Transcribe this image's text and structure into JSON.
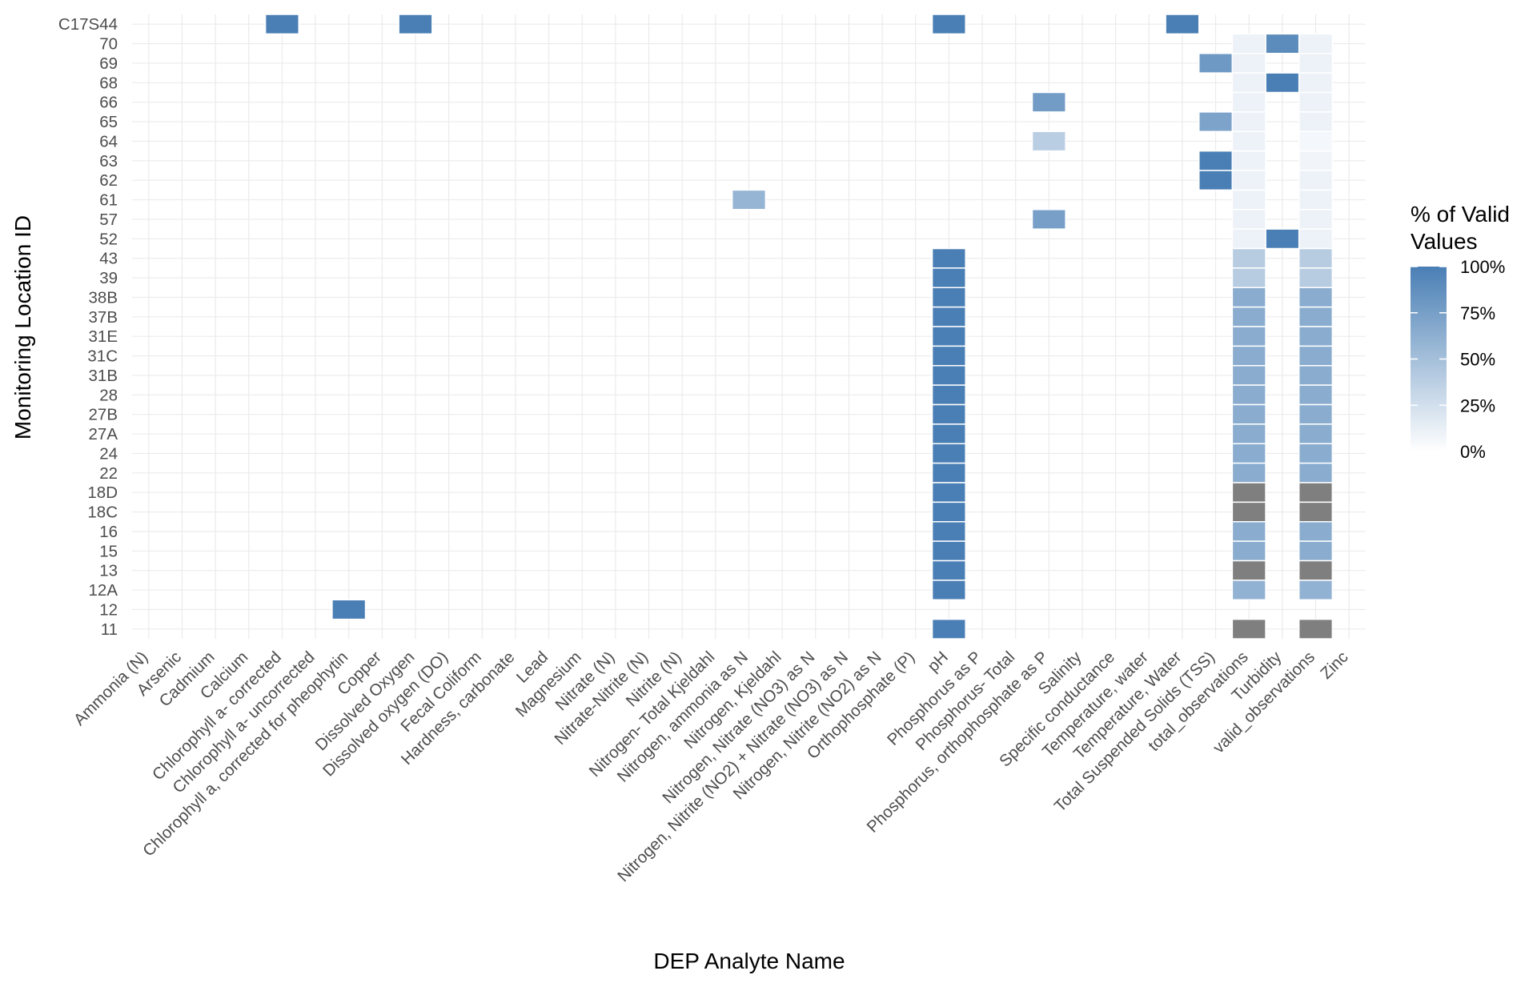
{
  "chart_data": {
    "type": "heatmap",
    "xlabel": "DEP Analyte Name",
    "ylabel": "Monitoring Location ID",
    "x_categories": [
      "Ammonia (N)",
      "Arsenic",
      "Cadmium",
      "Calcium",
      "Chlorophyll a- corrected",
      "Chlorophyll a- uncorrected",
      "Chlorophyll a, corrected for pheophytin",
      "Copper",
      "Dissolved Oxygen",
      "Dissolved oxygen (DO)",
      "Fecal Coliform",
      "Hardness, carbonate",
      "Lead",
      "Magnesium",
      "Nitrate (N)",
      "Nitrate-Nitrite (N)",
      "Nitrite (N)",
      "Nitrogen- Total Kjeldahl",
      "Nitrogen, ammonia as N",
      "Nitrogen, Kjeldahl",
      "Nitrogen, Nitrate (NO3) as N",
      "Nitrogen, Nitrite (NO2) + Nitrate (NO3) as N",
      "Nitrogen, Nitrite (NO2) as N",
      "Orthophosphate (P)",
      "pH",
      "Phosphorus as P",
      "Phosphorus- Total",
      "Phosphorus, orthophosphate as P",
      "Salinity",
      "Specific conductance",
      "Temperature, water",
      "Temperature, Water",
      "Total Suspended Solids (TSS)",
      "total_observations",
      "Turbidity",
      "valid_observations",
      "Zinc"
    ],
    "y_categories": [
      "C17S44",
      "70",
      "69",
      "68",
      "66",
      "65",
      "64",
      "63",
      "62",
      "61",
      "57",
      "52",
      "43",
      "39",
      "38B",
      "37B",
      "31E",
      "31C",
      "31B",
      "28",
      "27B",
      "27A",
      "24",
      "22",
      "18D",
      "18C",
      "16",
      "15",
      "13",
      "12A",
      "12",
      "11"
    ],
    "cells": [
      {
        "x": "Chlorophyll a- corrected",
        "y": "C17S44",
        "value": 100
      },
      {
        "x": "Dissolved Oxygen",
        "y": "C17S44",
        "value": 100
      },
      {
        "x": "pH",
        "y": "C17S44",
        "value": 100
      },
      {
        "x": "Temperature, Water",
        "y": "C17S44",
        "value": 100
      },
      {
        "x": "Turbidity",
        "y": "70",
        "value": 90
      },
      {
        "x": "Total Suspended Solids (TSS)",
        "y": "69",
        "value": 80
      },
      {
        "x": "Turbidity",
        "y": "68",
        "value": 100
      },
      {
        "x": "Phosphorus, orthophosphate as P",
        "y": "66",
        "value": 78
      },
      {
        "x": "Total Suspended Solids (TSS)",
        "y": "65",
        "value": 72
      },
      {
        "x": "Phosphorus, orthophosphate as P",
        "y": "64",
        "value": 38
      },
      {
        "x": "Total Suspended Solids (TSS)",
        "y": "63",
        "value": 100
      },
      {
        "x": "Total Suspended Solids (TSS)",
        "y": "62",
        "value": 100
      },
      {
        "x": "Nitrogen, ammonia as N",
        "y": "61",
        "value": 58
      },
      {
        "x": "Phosphorus, orthophosphate as P",
        "y": "57",
        "value": 75
      },
      {
        "x": "Turbidity",
        "y": "52",
        "value": 100
      },
      {
        "x": "total_observations",
        "y": "70",
        "value": 10
      },
      {
        "x": "total_observations",
        "y": "69",
        "value": 10
      },
      {
        "x": "total_observations",
        "y": "68",
        "value": 10
      },
      {
        "x": "total_observations",
        "y": "66",
        "value": 10
      },
      {
        "x": "total_observations",
        "y": "65",
        "value": 10
      },
      {
        "x": "total_observations",
        "y": "64",
        "value": 10
      },
      {
        "x": "total_observations",
        "y": "63",
        "value": 10
      },
      {
        "x": "total_observations",
        "y": "62",
        "value": 10
      },
      {
        "x": "total_observations",
        "y": "61",
        "value": 10
      },
      {
        "x": "total_observations",
        "y": "57",
        "value": 10
      },
      {
        "x": "total_observations",
        "y": "52",
        "value": 10
      },
      {
        "x": "total_observations",
        "y": "43",
        "value": 40
      },
      {
        "x": "total_observations",
        "y": "39",
        "value": 40
      },
      {
        "x": "total_observations",
        "y": "38B",
        "value": 65
      },
      {
        "x": "total_observations",
        "y": "37B",
        "value": 65
      },
      {
        "x": "total_observations",
        "y": "31E",
        "value": 65
      },
      {
        "x": "total_observations",
        "y": "31C",
        "value": 65
      },
      {
        "x": "total_observations",
        "y": "31B",
        "value": 65
      },
      {
        "x": "total_observations",
        "y": "28",
        "value": 65
      },
      {
        "x": "total_observations",
        "y": "27B",
        "value": 65
      },
      {
        "x": "total_observations",
        "y": "27A",
        "value": 65
      },
      {
        "x": "total_observations",
        "y": "24",
        "value": 65
      },
      {
        "x": "total_observations",
        "y": "22",
        "value": 65
      },
      {
        "x": "total_observations",
        "y": "18D",
        "value": null
      },
      {
        "x": "total_observations",
        "y": "18C",
        "value": null
      },
      {
        "x": "total_observations",
        "y": "16",
        "value": 65
      },
      {
        "x": "total_observations",
        "y": "15",
        "value": 65
      },
      {
        "x": "total_observations",
        "y": "13",
        "value": null
      },
      {
        "x": "total_observations",
        "y": "12A",
        "value": 60
      },
      {
        "x": "total_observations",
        "y": "11",
        "value": null
      },
      {
        "x": "valid_observations",
        "y": "70",
        "value": 10
      },
      {
        "x": "valid_observations",
        "y": "69",
        "value": 10
      },
      {
        "x": "valid_observations",
        "y": "68",
        "value": 10
      },
      {
        "x": "valid_observations",
        "y": "66",
        "value": 10
      },
      {
        "x": "valid_observations",
        "y": "65",
        "value": 10
      },
      {
        "x": "valid_observations",
        "y": "64",
        "value": 6
      },
      {
        "x": "valid_observations",
        "y": "63",
        "value": 8
      },
      {
        "x": "valid_observations",
        "y": "62",
        "value": 10
      },
      {
        "x": "valid_observations",
        "y": "61",
        "value": 10
      },
      {
        "x": "valid_observations",
        "y": "57",
        "value": 10
      },
      {
        "x": "valid_observations",
        "y": "52",
        "value": 10
      },
      {
        "x": "valid_observations",
        "y": "43",
        "value": 40
      },
      {
        "x": "valid_observations",
        "y": "39",
        "value": 40
      },
      {
        "x": "valid_observations",
        "y": "38B",
        "value": 65
      },
      {
        "x": "valid_observations",
        "y": "37B",
        "value": 65
      },
      {
        "x": "valid_observations",
        "y": "31E",
        "value": 65
      },
      {
        "x": "valid_observations",
        "y": "31C",
        "value": 65
      },
      {
        "x": "valid_observations",
        "y": "31B",
        "value": 65
      },
      {
        "x": "valid_observations",
        "y": "28",
        "value": 65
      },
      {
        "x": "valid_observations",
        "y": "27B",
        "value": 65
      },
      {
        "x": "valid_observations",
        "y": "27A",
        "value": 65
      },
      {
        "x": "valid_observations",
        "y": "24",
        "value": 65
      },
      {
        "x": "valid_observations",
        "y": "22",
        "value": 65
      },
      {
        "x": "valid_observations",
        "y": "18D",
        "value": null
      },
      {
        "x": "valid_observations",
        "y": "18C",
        "value": null
      },
      {
        "x": "valid_observations",
        "y": "16",
        "value": 65
      },
      {
        "x": "valid_observations",
        "y": "15",
        "value": 65
      },
      {
        "x": "valid_observations",
        "y": "13",
        "value": null
      },
      {
        "x": "valid_observations",
        "y": "12A",
        "value": 60
      },
      {
        "x": "valid_observations",
        "y": "11",
        "value": null
      },
      {
        "x": "pH",
        "y": "43",
        "value": 100
      },
      {
        "x": "pH",
        "y": "39",
        "value": 100
      },
      {
        "x": "pH",
        "y": "38B",
        "value": 100
      },
      {
        "x": "pH",
        "y": "37B",
        "value": 100
      },
      {
        "x": "pH",
        "y": "31E",
        "value": 100
      },
      {
        "x": "pH",
        "y": "31C",
        "value": 100
      },
      {
        "x": "pH",
        "y": "31B",
        "value": 100
      },
      {
        "x": "pH",
        "y": "28",
        "value": 100
      },
      {
        "x": "pH",
        "y": "27B",
        "value": 100
      },
      {
        "x": "pH",
        "y": "27A",
        "value": 100
      },
      {
        "x": "pH",
        "y": "24",
        "value": 100
      },
      {
        "x": "pH",
        "y": "22",
        "value": 100
      },
      {
        "x": "pH",
        "y": "18D",
        "value": 100
      },
      {
        "x": "pH",
        "y": "18C",
        "value": 100
      },
      {
        "x": "pH",
        "y": "16",
        "value": 100
      },
      {
        "x": "pH",
        "y": "15",
        "value": 100
      },
      {
        "x": "pH",
        "y": "13",
        "value": 100
      },
      {
        "x": "pH",
        "y": "12A",
        "value": 100
      },
      {
        "x": "pH",
        "y": "11",
        "value": 100
      },
      {
        "x": "Chlorophyll a, corrected for pheophytin",
        "y": "12",
        "value": 100
      }
    ],
    "color_scale": {
      "low": "#ffffff",
      "high": "#4a7fb5",
      "na": "#7f7f7f",
      "limits": [
        0,
        100
      ]
    },
    "legend": {
      "title_line1": "% of Valid",
      "title_line2": "Values",
      "labels": [
        "100%",
        "75%",
        "50%",
        "25%",
        "0%"
      ],
      "values": [
        100,
        75,
        50,
        25,
        0
      ],
      "placement": "right"
    },
    "grid": true
  }
}
